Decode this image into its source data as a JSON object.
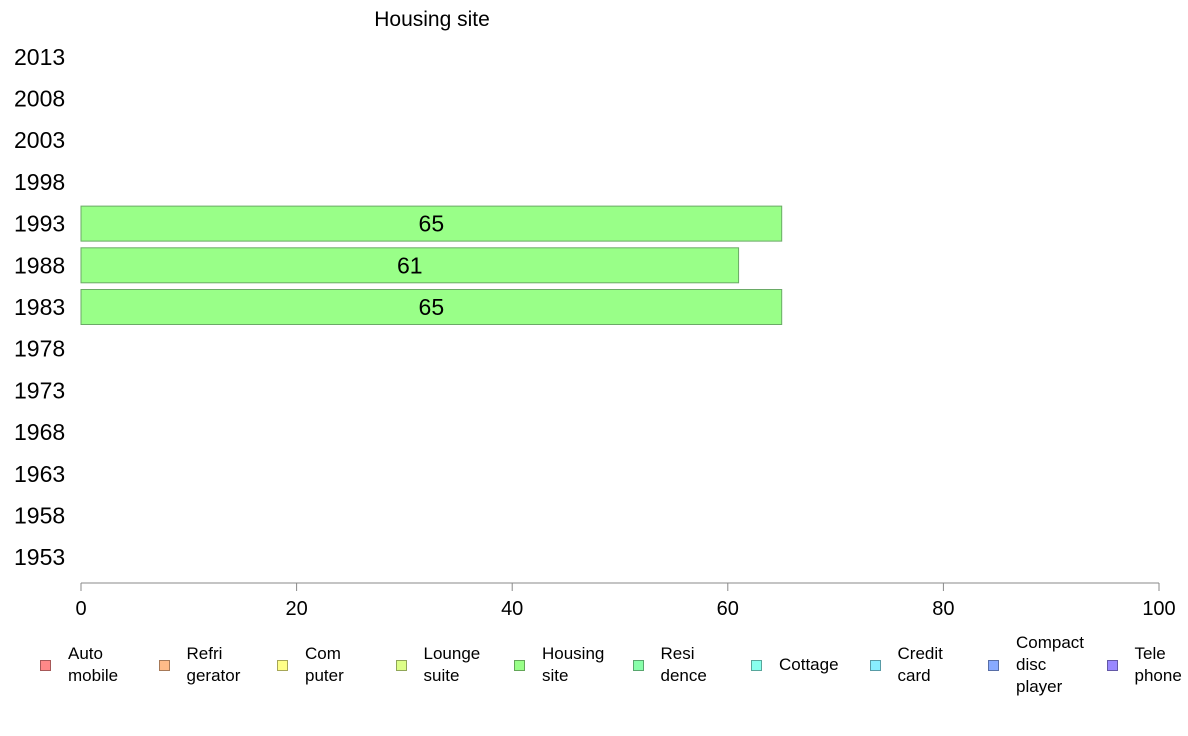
{
  "chart_data": {
    "type": "bar",
    "orientation": "horizontal",
    "title": "Housing site",
    "categories": [
      "1953",
      "1958",
      "1963",
      "1968",
      "1973",
      "1978",
      "1983",
      "1988",
      "1993",
      "1998",
      "2003",
      "2008",
      "2013"
    ],
    "series": [
      {
        "name": "Housing site",
        "color": "#99ff88",
        "values": [
          null,
          null,
          null,
          null,
          null,
          null,
          65,
          61,
          65,
          null,
          null,
          null,
          null
        ]
      }
    ],
    "xlim": [
      0,
      100
    ],
    "xticks": [
      0,
      20,
      40,
      60,
      80,
      100
    ],
    "grid": false,
    "legend_position": "bottom",
    "legend": [
      {
        "label": "Auto\nmobile",
        "color": "#ff8888"
      },
      {
        "label": "Refri\ngerator",
        "color": "#ffbb88"
      },
      {
        "label": "Com\nputer",
        "color": "#ffff88"
      },
      {
        "label": "Lounge\nsuite",
        "color": "#ddff88"
      },
      {
        "label": "Housing\nsite",
        "color": "#99ff88"
      },
      {
        "label": "Resi\ndence",
        "color": "#88ffaa"
      },
      {
        "label": "Cottage",
        "color": "#88ffee"
      },
      {
        "label": "Credit\ncard",
        "color": "#88eeff"
      },
      {
        "label": "Compact\ndisc\nplayer",
        "color": "#88aaff"
      },
      {
        "label": "Tele\nphone",
        "color": "#9988ff"
      }
    ]
  }
}
